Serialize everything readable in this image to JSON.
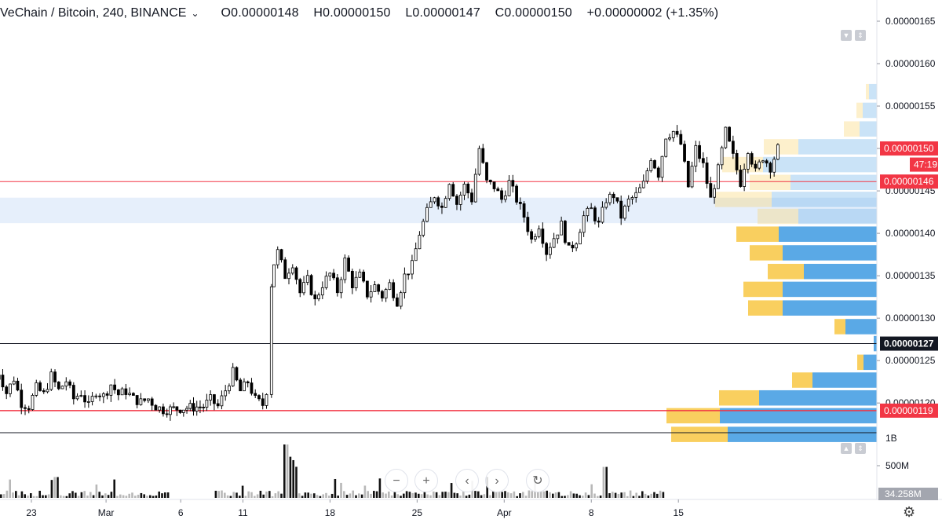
{
  "header": {
    "symbol": "VeChain / Bitcoin, 240, BINANCE",
    "open": "O0.00000148",
    "high": "H0.00000150",
    "low": "L0.00000147",
    "close": "C0.00000150",
    "change": "+0.00000002 (+1.35%)"
  },
  "chart_data": {
    "type": "candlestick",
    "title": "VeChain / Bitcoin, 240, BINANCE",
    "y_ticks": [
      "0.00000165",
      "0.00000160",
      "0.00000155",
      "0.00000150",
      "0.00000145",
      "0.00000140",
      "0.00000135",
      "0.00000130",
      "0.00000125",
      "0.00000120"
    ],
    "y_range": [
      1.165e-06,
      1.675e-06
    ],
    "x_ticks": [
      {
        "label": "23",
        "day": 23
      },
      {
        "label": "Mar",
        "day": 29
      },
      {
        "label": "6",
        "day": 35
      },
      {
        "label": "11",
        "day": 40
      },
      {
        "label": "18",
        "day": 47
      },
      {
        "label": "25",
        "day": 54
      },
      {
        "label": "Apr",
        "day": 61
      },
      {
        "label": "8",
        "day": 68
      },
      {
        "label": "15",
        "day": 75
      }
    ],
    "price_labels": [
      {
        "value": "0.00000150",
        "price": 1.5e-06,
        "kind": "last"
      },
      {
        "value": "47:19",
        "price": 1.481e-06,
        "kind": "timer"
      },
      {
        "value": "0.00000146",
        "price": 1.461e-06,
        "kind": "level"
      },
      {
        "value": "0.00000127",
        "price": 1.27e-06,
        "kind": "cross"
      },
      {
        "value": "0.00000119",
        "price": 1.191e-06,
        "kind": "level"
      }
    ],
    "horizontal_lines": [
      {
        "price": 1.461e-06,
        "color": "#f23645",
        "width": 1
      },
      {
        "price": 1.27e-06,
        "color": "#131722",
        "width": 1
      },
      {
        "price": 1.191e-06,
        "color": "#f23645",
        "width": 1.5
      }
    ],
    "value_area": {
      "from": 1.412e-06,
      "to": 1.442e-06
    },
    "candle_path": [
      [
        20.0,
        1.22
      ],
      [
        20.6,
        1.236
      ],
      [
        21.2,
        1.212
      ],
      [
        21.8,
        1.229
      ],
      [
        22.4,
        1.2
      ],
      [
        23.0,
        1.196
      ],
      [
        23.6,
        1.218
      ],
      [
        24.2,
        1.21
      ],
      [
        24.8,
        1.232
      ],
      [
        25.4,
        1.215
      ],
      [
        26.0,
        1.226
      ],
      [
        26.6,
        1.205
      ],
      [
        27.2,
        1.212
      ],
      [
        27.8,
        1.196
      ],
      [
        28.4,
        1.214
      ],
      [
        29.0,
        1.208
      ],
      [
        29.6,
        1.222
      ],
      [
        30.2,
        1.21
      ],
      [
        30.8,
        1.214
      ],
      [
        31.4,
        1.205
      ],
      [
        32.0,
        1.201
      ],
      [
        32.6,
        1.205
      ],
      [
        33.2,
        1.196
      ],
      [
        33.8,
        1.192
      ],
      [
        37.0,
        1.196
      ],
      [
        37.6,
        1.204
      ],
      [
        38.2,
        1.196
      ],
      [
        38.8,
        1.215
      ],
      [
        39.4,
        1.236
      ],
      [
        40.0,
        1.214
      ],
      [
        40.6,
        1.225
      ],
      [
        41.2,
        1.204
      ],
      [
        41.8,
        1.198
      ],
      [
        42.2,
        1.215
      ],
      [
        42.4,
        1.34
      ],
      [
        42.7,
        1.365
      ],
      [
        43.0,
        1.378
      ],
      [
        43.6,
        1.35
      ],
      [
        44.2,
        1.365
      ],
      [
        44.8,
        1.33
      ],
      [
        45.4,
        1.345
      ],
      [
        46.0,
        1.32
      ],
      [
        46.6,
        1.34
      ],
      [
        47.2,
        1.352
      ],
      [
        47.8,
        1.332
      ],
      [
        48.4,
        1.368
      ],
      [
        49.0,
        1.34
      ],
      [
        49.6,
        1.35
      ],
      [
        50.2,
        1.328
      ],
      [
        50.8,
        1.338
      ],
      [
        51.4,
        1.326
      ],
      [
        52.0,
        1.34
      ],
      [
        52.6,
        1.32
      ],
      [
        53.2,
        1.35
      ],
      [
        53.8,
        1.362
      ],
      [
        54.4,
        1.4
      ],
      [
        55.0,
        1.425
      ],
      [
        55.6,
        1.445
      ],
      [
        56.2,
        1.43
      ],
      [
        56.8,
        1.462
      ],
      [
        57.4,
        1.435
      ],
      [
        58.0,
        1.456
      ],
      [
        58.6,
        1.44
      ],
      [
        59.2,
        1.5
      ],
      [
        59.8,
        1.46
      ],
      [
        60.4,
        1.455
      ],
      [
        61.0,
        1.44
      ],
      [
        61.6,
        1.46
      ],
      [
        62.2,
        1.44
      ],
      [
        62.8,
        1.42
      ],
      [
        63.4,
        1.392
      ],
      [
        64.0,
        1.41
      ],
      [
        64.6,
        1.378
      ],
      [
        65.2,
        1.395
      ],
      [
        65.8,
        1.41
      ],
      [
        66.4,
        1.38
      ],
      [
        67.0,
        1.392
      ],
      [
        67.6,
        1.42
      ],
      [
        68.2,
        1.428
      ],
      [
        68.8,
        1.41
      ],
      [
        69.4,
        1.44
      ],
      [
        70.0,
        1.445
      ],
      [
        70.6,
        1.42
      ],
      [
        71.2,
        1.438
      ],
      [
        71.8,
        1.445
      ],
      [
        72.4,
        1.458
      ],
      [
        73.0,
        1.49
      ],
      [
        73.6,
        1.47
      ],
      [
        74.2,
        1.515
      ],
      [
        74.8,
        1.52
      ],
      [
        75.4,
        1.505
      ],
      [
        76.0,
        1.455
      ],
      [
        76.6,
        1.5
      ],
      [
        77.2,
        1.48
      ],
      [
        77.8,
        1.44
      ],
      [
        78.4,
        1.475
      ],
      [
        79.0,
        1.52
      ],
      [
        79.6,
        1.49
      ],
      [
        80.2,
        1.46
      ],
      [
        80.8,
        1.5
      ],
      [
        81.4,
        1.472
      ],
      [
        82.0,
        1.49
      ],
      [
        82.6,
        1.478
      ],
      [
        83.2,
        1.5
      ]
    ],
    "volume_profile": {
      "rows": [
        {
          "price": 1.567,
          "buy": 10,
          "sell": 4,
          "highlight": true
        },
        {
          "price": 1.545,
          "buy": 18,
          "sell": 8,
          "highlight": true
        },
        {
          "price": 1.523,
          "buy": 22,
          "sell": 20,
          "highlight": true
        },
        {
          "price": 1.502,
          "buy": 100,
          "sell": 44,
          "highlight": true
        },
        {
          "price": 1.481,
          "buy": 145,
          "sell": 52,
          "highlight": true
        },
        {
          "price": 1.46,
          "buy": 110,
          "sell": 52,
          "highlight": true
        },
        {
          "price": 1.44,
          "buy": 134,
          "sell": 72,
          "highlight": true
        },
        {
          "price": 1.42,
          "buy": 100,
          "sell": 52,
          "highlight": true
        },
        {
          "price": 1.399,
          "buy": 125,
          "sell": 54,
          "highlight": false
        },
        {
          "price": 1.377,
          "buy": 120,
          "sell": 42,
          "highlight": false
        },
        {
          "price": 1.355,
          "buy": 93,
          "sell": 46,
          "highlight": false
        },
        {
          "price": 1.334,
          "buy": 120,
          "sell": 50,
          "highlight": false
        },
        {
          "price": 1.312,
          "buy": 120,
          "sell": 44,
          "highlight": false
        },
        {
          "price": 1.29,
          "buy": 40,
          "sell": 14,
          "highlight": false
        },
        {
          "price": 1.27,
          "buy": 4,
          "sell": 0,
          "highlight": false
        },
        {
          "price": 1.248,
          "buy": 17,
          "sell": 8,
          "highlight": false
        },
        {
          "price": 1.227,
          "buy": 82,
          "sell": 26,
          "highlight": false
        },
        {
          "price": 1.206,
          "buy": 150,
          "sell": 51,
          "highlight": false
        },
        {
          "price": 1.185,
          "buy": 200,
          "sell": 68,
          "highlight": false
        },
        {
          "price": 1.163,
          "buy": 190,
          "sell": 72,
          "highlight": false
        }
      ]
    },
    "volume_ticks": [
      "1B",
      "500M"
    ],
    "volume_label": "34.258M",
    "volume_max": 1000
  },
  "toolbar": {
    "zoom_out": "−",
    "zoom_in": "+",
    "scroll_left": "‹",
    "scroll_right": "›",
    "reset": "↻"
  },
  "colors": {
    "accent_red": "#f23645",
    "buy": "#5aa9e6",
    "sell": "#f9cf5f",
    "value_area": "#e6effb"
  }
}
